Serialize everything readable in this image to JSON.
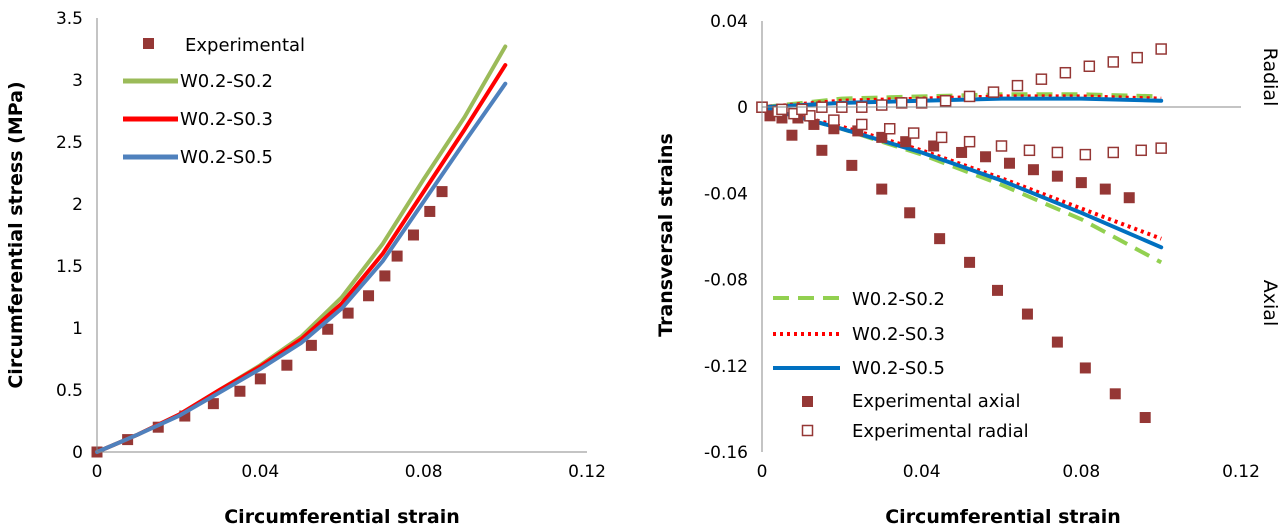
{
  "chart_data": [
    {
      "type": "line",
      "xlabel": "Circumferential strain",
      "ylabel": "Circumferential stress (MPa)",
      "xlim": [
        0,
        0.12
      ],
      "ylim": [
        0,
        3.5
      ],
      "xticks": [
        "0",
        "0.04",
        "0.08",
        "0.12"
      ],
      "yticks": [
        "0",
        "0.5",
        "1",
        "1.5",
        "2",
        "2.5",
        "3",
        "3.5"
      ],
      "x_tick_values": [
        0,
        0.04,
        0.08,
        0.12
      ],
      "y_tick_values": [
        0,
        0.5,
        1,
        1.5,
        2,
        2.5,
        3,
        3.5
      ],
      "grid": false,
      "legend_position": "top-left",
      "series": [
        {
          "name": "Experimental",
          "style": "marker-filled-square",
          "color": "#953735",
          "x": [
            0,
            0.0075,
            0.015,
            0.0215,
            0.0285,
            0.035,
            0.04,
            0.0465,
            0.0525,
            0.0565,
            0.0615,
            0.0665,
            0.0705,
            0.0735,
            0.0775,
            0.0815,
            0.0845
          ],
          "y": [
            0,
            0.1,
            0.2,
            0.29,
            0.39,
            0.49,
            0.59,
            0.7,
            0.86,
            0.99,
            1.12,
            1.26,
            1.42,
            1.58,
            1.75,
            1.94,
            2.1
          ]
        },
        {
          "name": "W0.2-S0.2",
          "style": "line",
          "color": "#9bbb59",
          "x": [
            0,
            0.01,
            0.02,
            0.03,
            0.04,
            0.05,
            0.06,
            0.07,
            0.08,
            0.09,
            0.1
          ],
          "y": [
            0,
            0.14,
            0.3,
            0.5,
            0.7,
            0.93,
            1.25,
            1.68,
            2.2,
            2.7,
            3.27
          ]
        },
        {
          "name": "W0.2-S0.3",
          "style": "line",
          "color": "#ff0000",
          "x": [
            0,
            0.01,
            0.02,
            0.03,
            0.04,
            0.05,
            0.06,
            0.07,
            0.08,
            0.09,
            0.1
          ],
          "y": [
            0,
            0.14,
            0.3,
            0.5,
            0.69,
            0.91,
            1.2,
            1.6,
            2.1,
            2.6,
            3.12
          ]
        },
        {
          "name": "W0.2-S0.5",
          "style": "line",
          "color": "#4f81bd",
          "x": [
            0,
            0.01,
            0.02,
            0.03,
            0.04,
            0.05,
            0.06,
            0.07,
            0.08,
            0.09,
            0.1
          ],
          "y": [
            0,
            0.14,
            0.29,
            0.48,
            0.67,
            0.88,
            1.16,
            1.54,
            2.02,
            2.5,
            2.97
          ]
        }
      ]
    },
    {
      "type": "line",
      "xlabel": "Circumferential strain",
      "ylabel": "Transversal strains",
      "xlim": [
        0,
        0.12
      ],
      "ylim": [
        -0.16,
        0.04
      ],
      "xticks": [
        "0",
        "0.04",
        "0.08",
        "0.12"
      ],
      "yticks": [
        "0.04",
        "0",
        "-0.04",
        "-0.08",
        "-0.12",
        "-0.16"
      ],
      "x_tick_values": [
        0,
        0.04,
        0.08,
        0.12
      ],
      "y_tick_values": [
        0.04,
        0,
        -0.04,
        -0.08,
        -0.12,
        -0.16
      ],
      "grid": false,
      "legend_position": "bottom-left",
      "side_labels": {
        "upper": "Radial",
        "lower": "Axial"
      },
      "series": [
        {
          "name": "W0.2-S0.2",
          "style": "dashed-line",
          "color": "#92d050",
          "x": [
            0,
            0.02,
            0.04,
            0.06,
            0.08,
            0.1
          ],
          "y_axial": [
            0,
            -0.01,
            -0.022,
            -0.036,
            -0.052,
            -0.072
          ],
          "y_radial": [
            0,
            0.004,
            0.005,
            0.006,
            0.006,
            0.005
          ]
        },
        {
          "name": "W0.2-S0.3",
          "style": "dotted-line",
          "color": "#ff0000",
          "x": [
            0,
            0.02,
            0.04,
            0.06,
            0.08,
            0.1
          ],
          "y_axial": [
            0,
            -0.009,
            -0.02,
            -0.033,
            -0.047,
            -0.061
          ],
          "y_radial": [
            0,
            0.003,
            0.004,
            0.005,
            0.005,
            0.004
          ]
        },
        {
          "name": "W0.2-S0.5",
          "style": "line",
          "color": "#0070c0",
          "x": [
            0,
            0.02,
            0.04,
            0.06,
            0.08,
            0.1
          ],
          "y_axial": [
            0,
            -0.01,
            -0.021,
            -0.034,
            -0.049,
            -0.065
          ],
          "y_radial": [
            0,
            0.002,
            0.003,
            0.004,
            0.004,
            0.003
          ]
        },
        {
          "name": "Experimental axial",
          "style": "marker-filled-square",
          "color": "#953735",
          "x": [
            0,
            0.0075,
            0.015,
            0.0225,
            0.03,
            0.037,
            0.0445,
            0.052,
            0.059,
            0.0665,
            0.074,
            0.081,
            0.0885,
            0.096
          ],
          "y": [
            0,
            -0.013,
            -0.02,
            -0.027,
            -0.038,
            -0.049,
            -0.061,
            -0.072,
            -0.085,
            -0.096,
            -0.109,
            -0.121,
            -0.133,
            -0.144
          ]
        },
        {
          "name": "Experimental axial",
          "style": "marker-filled-square",
          "color": "#953735",
          "x": [
            0,
            0.002,
            0.005,
            0.009,
            0.013,
            0.018,
            0.024,
            0.03,
            0.036,
            0.043,
            0.05,
            0.056,
            0.062,
            0.068,
            0.074,
            0.08,
            0.086,
            0.092
          ],
          "y": [
            0,
            -0.004,
            -0.005,
            -0.005,
            -0.008,
            -0.01,
            -0.011,
            -0.014,
            -0.016,
            -0.018,
            -0.021,
            -0.023,
            -0.026,
            -0.029,
            -0.032,
            -0.035,
            -0.038,
            -0.042
          ]
        },
        {
          "name": "Experimental radial",
          "style": "marker-open-square",
          "color": "#953735",
          "x": [
            0,
            0.004,
            0.008,
            0.012,
            0.018,
            0.025,
            0.032,
            0.038,
            0.045,
            0.052,
            0.06,
            0.067,
            0.074,
            0.081,
            0.088,
            0.095,
            0.1
          ],
          "y": [
            0,
            -0.002,
            -0.003,
            -0.004,
            -0.006,
            -0.008,
            -0.01,
            -0.012,
            -0.014,
            -0.016,
            -0.018,
            -0.02,
            -0.021,
            -0.022,
            -0.021,
            -0.02,
            -0.019
          ]
        },
        {
          "name": "Experimental radial",
          "style": "marker-open-square",
          "color": "#953735",
          "x": [
            0,
            0.005,
            0.01,
            0.015,
            0.02,
            0.025,
            0.03,
            0.035,
            0.04,
            0.046,
            0.052,
            0.058,
            0.064,
            0.07,
            0.076,
            0.082,
            0.088,
            0.094,
            0.1
          ],
          "y": [
            0,
            -0.001,
            -0.001,
            0,
            0,
            0,
            0.001,
            0.002,
            0.002,
            0.003,
            0.005,
            0.007,
            0.01,
            0.013,
            0.016,
            0.019,
            0.021,
            0.023,
            0.027
          ]
        }
      ]
    }
  ]
}
